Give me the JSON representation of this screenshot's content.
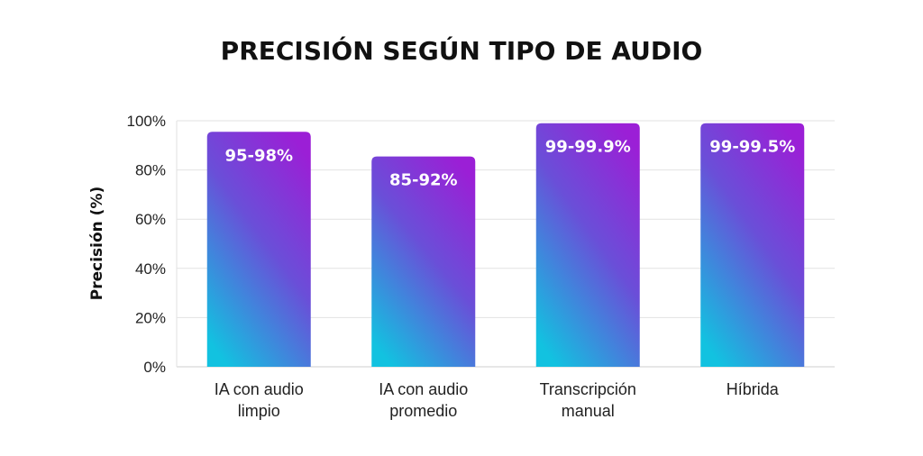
{
  "chart_data": {
    "type": "bar",
    "title": "PRECISIÓN SEGÚN TIPO DE AUDIO",
    "xlabel": "",
    "ylabel": "Precisión (%)",
    "ylim": [
      0,
      100
    ],
    "yticks": [
      "0%",
      "20%",
      "40%",
      "60%",
      "80%",
      "100%"
    ],
    "grid": true,
    "categories": [
      [
        "IA con audio",
        "limpio"
      ],
      [
        "IA con audio",
        "promedio"
      ],
      [
        "Transcripción",
        "manual"
      ],
      [
        "Híbrida"
      ]
    ],
    "values": [
      95.5,
      85.5,
      99,
      99
    ],
    "data_labels": [
      "95-98%",
      "85-92%",
      "99-99.9%",
      "99-99.5%"
    ],
    "colors": {
      "gradient_top": "#9b1fd6",
      "gradient_mid": "#6a4fd8",
      "gradient_bottom": "#12c2e0"
    }
  }
}
